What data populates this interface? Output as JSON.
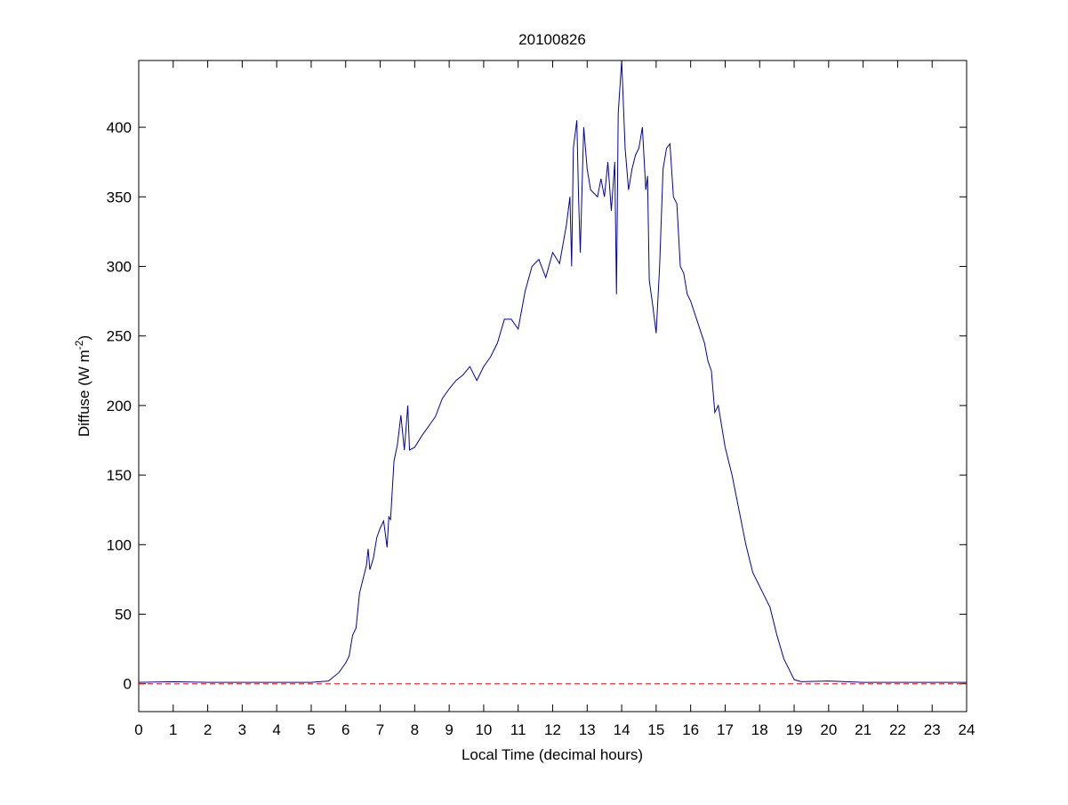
{
  "chart_data": {
    "type": "line",
    "title": "20100826",
    "xlabel": "Local Time (decimal hours)",
    "ylabel": {
      "text": "Diffuse (W m",
      "superscript": "-2",
      "suffix": ")"
    },
    "xlim": [
      0,
      24
    ],
    "ylim": [
      -20,
      448
    ],
    "xticks": [
      0,
      1,
      2,
      3,
      4,
      5,
      6,
      7,
      8,
      9,
      10,
      11,
      12,
      13,
      14,
      15,
      16,
      17,
      18,
      19,
      20,
      21,
      22,
      23,
      24
    ],
    "yticks": [
      0,
      50,
      100,
      150,
      200,
      250,
      300,
      350,
      400
    ],
    "reference_line": {
      "value": 0,
      "color": "#ff0000",
      "style": "dashed"
    },
    "x": [
      0,
      1,
      2,
      3,
      4,
      5,
      5.5,
      5.8,
      6,
      6.1,
      6.2,
      6.3,
      6.4,
      6.5,
      6.6,
      6.65,
      6.7,
      6.8,
      6.9,
      7.0,
      7.1,
      7.2,
      7.25,
      7.3,
      7.4,
      7.5,
      7.6,
      7.7,
      7.8,
      7.85,
      8.0,
      8.2,
      8.4,
      8.6,
      8.8,
      9.0,
      9.2,
      9.4,
      9.6,
      9.8,
      10.0,
      10.2,
      10.4,
      10.6,
      10.8,
      11.0,
      11.2,
      11.4,
      11.6,
      11.8,
      12.0,
      12.2,
      12.4,
      12.5,
      12.55,
      12.6,
      12.7,
      12.75,
      12.8,
      12.9,
      13.0,
      13.1,
      13.3,
      13.4,
      13.5,
      13.6,
      13.7,
      13.8,
      13.85,
      13.9,
      14.0,
      14.1,
      14.2,
      14.3,
      14.4,
      14.5,
      14.6,
      14.7,
      14.75,
      14.8,
      14.9,
      15.0,
      15.1,
      15.2,
      15.3,
      15.4,
      15.5,
      15.6,
      15.7,
      15.8,
      15.9,
      16.0,
      16.2,
      16.4,
      16.5,
      16.6,
      16.7,
      16.8,
      17.0,
      17.2,
      17.4,
      17.6,
      17.8,
      18.0,
      18.1,
      18.3,
      18.5,
      18.7,
      18.9,
      19.0,
      19.2,
      20,
      21,
      22,
      23,
      24
    ],
    "series": [
      {
        "name": "Diffuse",
        "color": "#0000aa",
        "values": [
          1,
          1.5,
          1,
          1,
          1,
          1,
          2,
          8,
          15,
          20,
          35,
          40,
          65,
          75,
          85,
          97,
          82,
          90,
          105,
          112,
          117,
          98,
          120,
          118,
          160,
          172,
          193,
          168,
          200,
          168,
          170,
          178,
          185,
          192,
          205,
          212,
          218,
          222,
          228,
          218,
          228,
          235,
          245,
          262,
          262,
          255,
          282,
          300,
          305,
          292,
          310,
          302,
          330,
          350,
          300,
          385,
          405,
          350,
          310,
          400,
          370,
          355,
          350,
          363,
          350,
          375,
          340,
          375,
          280,
          410,
          448,
          385,
          355,
          370,
          380,
          385,
          400,
          355,
          365,
          290,
          272,
          252,
          300,
          370,
          385,
          388,
          350,
          345,
          300,
          295,
          280,
          275,
          260,
          245,
          232,
          225,
          195,
          200,
          170,
          150,
          125,
          100,
          80,
          70,
          65,
          55,
          35,
          18,
          8,
          3,
          1.5,
          2,
          1,
          1,
          1,
          1
        ]
      }
    ]
  }
}
